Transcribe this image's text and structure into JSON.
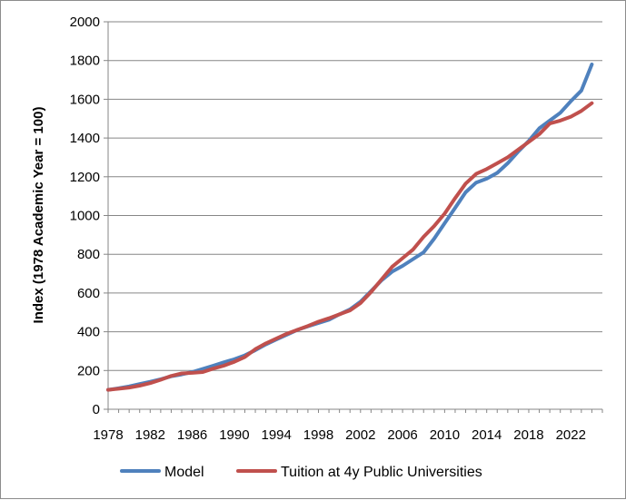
{
  "chart_data": {
    "type": "line",
    "title": "",
    "xlabel": "",
    "ylabel": "Index (1978 Academic Year = 100)",
    "ylim": [
      0,
      2000
    ],
    "xlim": [
      1978,
      2025
    ],
    "yticks": [
      0,
      200,
      400,
      600,
      800,
      1000,
      1200,
      1400,
      1600,
      1800,
      2000
    ],
    "xticks": [
      1978,
      1982,
      1986,
      1990,
      1994,
      1998,
      2002,
      2006,
      2010,
      2014,
      2018,
      2022
    ],
    "legend_position": "bottom",
    "grid": "horizontal",
    "colors": {
      "Model": "#4f81bd",
      "Tuition at 4y Public Universities": "#c0504d"
    },
    "x": [
      1978,
      1979,
      1980,
      1981,
      1982,
      1983,
      1984,
      1985,
      1986,
      1987,
      1988,
      1989,
      1990,
      1991,
      1992,
      1993,
      1994,
      1995,
      1996,
      1997,
      1998,
      1999,
      2000,
      2001,
      2002,
      2003,
      2004,
      2005,
      2006,
      2007,
      2008,
      2009,
      2010,
      2011,
      2012,
      2013,
      2014,
      2015,
      2016,
      2017,
      2018,
      2019,
      2020,
      2021,
      2022,
      2023,
      2024
    ],
    "series": [
      {
        "name": "Model",
        "values": [
          100,
          108,
          118,
          130,
          142,
          155,
          170,
          180,
          192,
          208,
          225,
          242,
          258,
          278,
          305,
          335,
          360,
          385,
          410,
          428,
          445,
          462,
          490,
          515,
          555,
          610,
          665,
          710,
          740,
          775,
          810,
          880,
          960,
          1040,
          1120,
          1170,
          1190,
          1220,
          1270,
          1330,
          1385,
          1450,
          1490,
          1530,
          1590,
          1645,
          1780
        ]
      },
      {
        "name": "Tuition at 4y Public Universities",
        "values": [
          100,
          106,
          112,
          122,
          135,
          152,
          172,
          185,
          188,
          192,
          210,
          225,
          245,
          270,
          310,
          340,
          365,
          390,
          410,
          430,
          452,
          470,
          490,
          510,
          548,
          605,
          670,
          735,
          780,
          825,
          890,
          945,
          1010,
          1090,
          1165,
          1215,
          1240,
          1270,
          1300,
          1340,
          1380,
          1420,
          1475,
          1490,
          1510,
          1540,
          1580
        ]
      }
    ]
  }
}
